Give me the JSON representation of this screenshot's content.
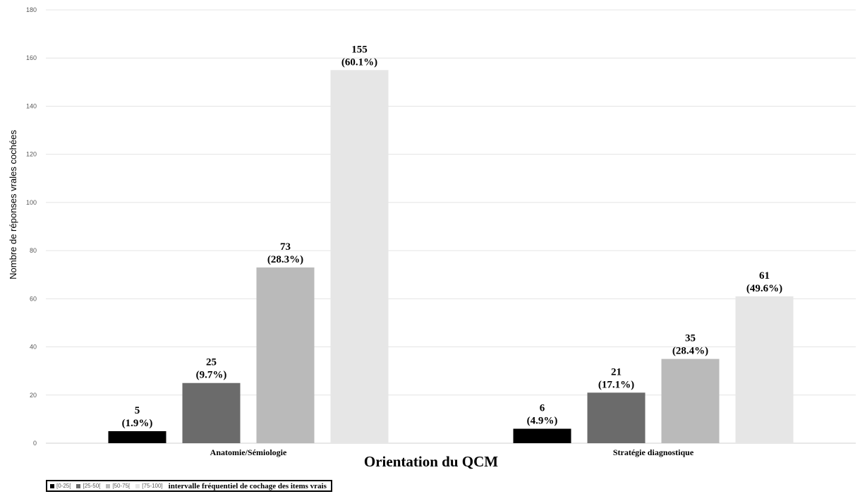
{
  "chart_data": {
    "type": "bar",
    "categories": [
      "Anatomie/Sémiologie",
      "Stratégie diagnostique"
    ],
    "series": [
      {
        "name": "[0-25[",
        "color": "#000000",
        "values": [
          5,
          6
        ],
        "labels": [
          "(1.9%)",
          "(4.9%)"
        ]
      },
      {
        "name": "[25-50[",
        "color": "#6b6b6b",
        "values": [
          25,
          21
        ],
        "labels": [
          "(9.7%)",
          "(17.1%)"
        ]
      },
      {
        "name": "[50-75[",
        "color": "#bababa",
        "values": [
          73,
          35
        ],
        "labels": [
          "(28.3%)",
          "(28.4%)"
        ]
      },
      {
        "name": "[75-100]",
        "color": "#e6e6e6",
        "values": [
          155,
          61
        ],
        "labels": [
          "(60.1%)",
          "(49.6%)"
        ]
      }
    ],
    "ylabel": "Nombre de réponses vrales cochées",
    "xlabel": "Orientation du QCM",
    "ylim": [
      0,
      180
    ],
    "yticks": [
      0,
      20,
      40,
      60,
      80,
      100,
      120,
      140,
      160,
      180
    ],
    "grid": true,
    "legend_position": "bottom-left",
    "legend_title": "intervalle fréquentiel de cochage des items vrais"
  }
}
